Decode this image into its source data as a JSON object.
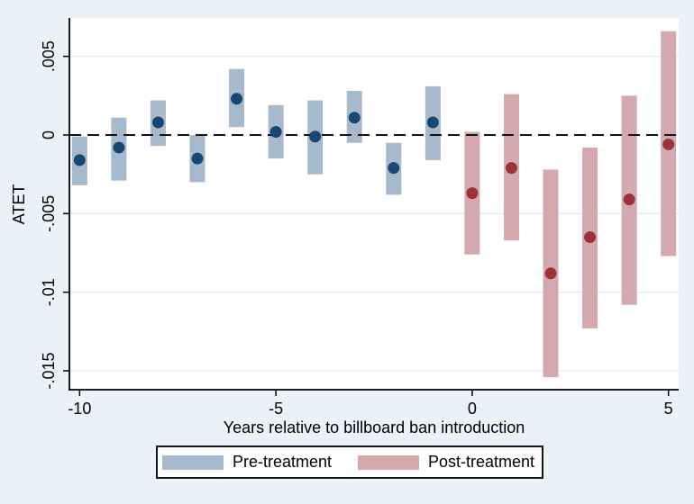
{
  "colors": {
    "page_background": "#eaf2f3",
    "plot_background": "#ffffff",
    "gridline": "#e0ebf0",
    "axis": "#000000",
    "zero_line": "#111111",
    "pre_bar": "#a7b9cc",
    "pre_dot": "#1a476f",
    "post_bar": "#d3a8ae",
    "post_dot": "#9b3439",
    "text": "#000000"
  },
  "chart_data": {
    "type": "scatter",
    "subtype": "event-study estimates with confidence-interval range bars",
    "title": "",
    "xlabel": "Years relative to billboard ban introduction",
    "ylabel": "ATET",
    "xlim": [
      -10.26,
      5.26
    ],
    "ylim": [
      -0.0162,
      0.00744
    ],
    "grid": true,
    "zero_line": {
      "value": 0,
      "style": "dashed",
      "color": "#111111"
    },
    "yticks": [
      {
        "value": 0.005,
        "label": ".005"
      },
      {
        "value": 0,
        "label": "0"
      },
      {
        "value": -0.005,
        "label": "-.005"
      },
      {
        "value": -0.01,
        "label": "-.01"
      },
      {
        "value": -0.015,
        "label": "-.015"
      }
    ],
    "xticks": [
      {
        "value": -10,
        "label": "-10"
      },
      {
        "value": -5,
        "label": "-5"
      },
      {
        "value": 0,
        "label": "0"
      },
      {
        "value": 5,
        "label": "5"
      }
    ],
    "series": [
      {
        "name": "Pre-treatment",
        "bar_color": "#a7b9cc",
        "dot_color": "#1a476f",
        "x": [
          -10,
          -9,
          -8,
          -7,
          -6,
          -5,
          -4,
          -3,
          -2,
          -1
        ],
        "estimates": [
          -0.0016,
          -0.0008,
          0.0008,
          -0.0015,
          0.0023,
          0.0002,
          -0.0001,
          0.0011,
          -0.0021,
          0.0008
        ],
        "ci_high": [
          -0.0001,
          0.0011,
          0.0022,
          0.0,
          0.0042,
          0.0019,
          0.0022,
          0.0028,
          -0.0005,
          0.0031
        ],
        "ci_low": [
          -0.0032,
          -0.0029,
          -0.0007,
          -0.003,
          0.0005,
          -0.0015,
          -0.0025,
          -0.0005,
          -0.0038,
          -0.0016
        ]
      },
      {
        "name": "Post-treatment",
        "bar_color": "#d3a8ae",
        "dot_color": "#9b3439",
        "x": [
          0,
          1,
          2,
          3,
          4,
          5
        ],
        "estimates": [
          -0.0037,
          -0.0021,
          -0.0088,
          -0.0065,
          -0.0041,
          -0.0006
        ],
        "ci_high": [
          0.0002,
          0.0026,
          -0.0022,
          -0.0008,
          0.0025,
          0.0066
        ],
        "ci_low": [
          -0.0076,
          -0.0067,
          -0.0154,
          -0.0123,
          -0.0108,
          -0.0077
        ]
      }
    ],
    "legend": {
      "position": "bottom",
      "items": [
        {
          "label": "Pre-treatment",
          "color": "#a7b9cc"
        },
        {
          "label": "Post-treatment",
          "color": "#d3a8ae"
        }
      ]
    }
  }
}
